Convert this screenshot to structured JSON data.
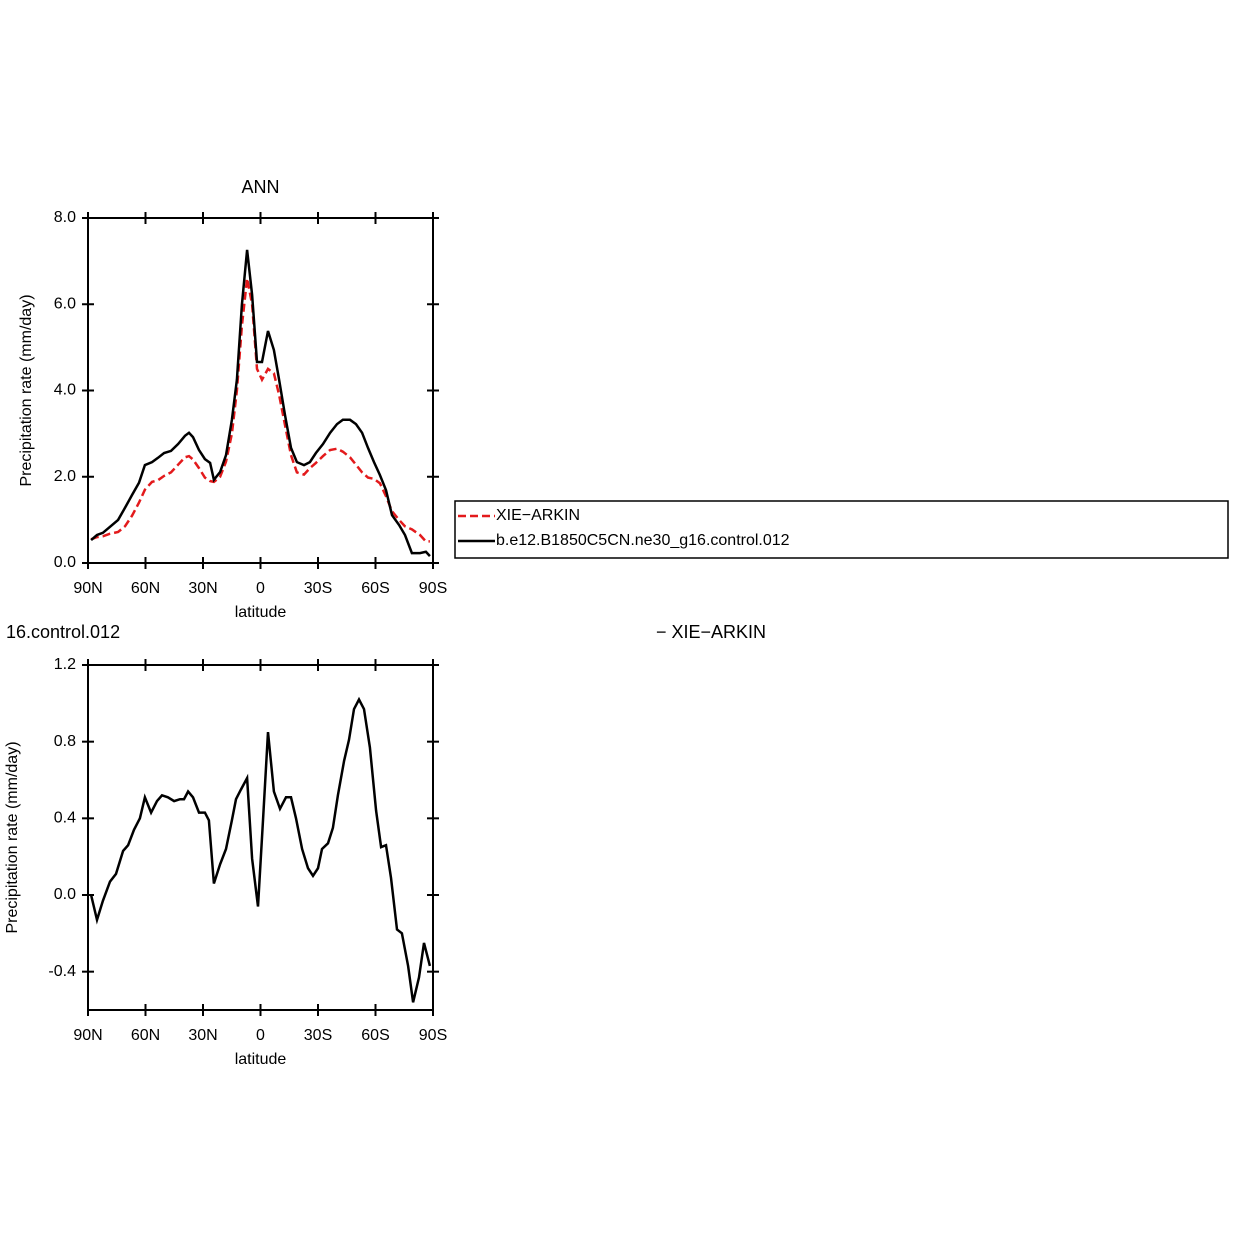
{
  "chart_data": [
    {
      "type": "line",
      "title": "ANN",
      "x_label": "latitude",
      "y_label": "Precipitation rate (mm/day)",
      "x": [
        88.4,
        85.3,
        82.2,
        78.5,
        74.3,
        70.7,
        67.0,
        63.4,
        60.3,
        56.6,
        53.5,
        50.3,
        46.7,
        43.0,
        39.4,
        37.3,
        35.2,
        32.1,
        29.0,
        26.3,
        24.3,
        21.1,
        18.0,
        14.9,
        12.3,
        9.7,
        7.0,
        4.4,
        1.8,
        -0.8,
        -3.9,
        -7.0,
        -9.7,
        -12.8,
        -15.9,
        -19.0,
        -22.7,
        -25.8,
        -28.9,
        -32.6,
        -36.3,
        -39.9,
        -43.0,
        -46.7,
        -49.8,
        -53.0,
        -56.1,
        -59.2,
        -62.3,
        -65.5,
        -68.6,
        -72.3,
        -75.4,
        -79.0,
        -83.2,
        -86.3,
        -88.4
      ],
      "series": [
        {
          "name": "XIE−ARKIN",
          "color": "#e31a1c",
          "dashed": true,
          "values": [
            0.55,
            0.6,
            0.62,
            0.68,
            0.72,
            0.85,
            1.1,
            1.4,
            1.7,
            1.88,
            1.92,
            2.02,
            2.1,
            2.28,
            2.45,
            2.48,
            2.4,
            2.2,
            1.98,
            1.9,
            1.88,
            2.0,
            2.35,
            3.0,
            4.0,
            5.5,
            6.6,
            6.0,
            4.5,
            4.25,
            4.5,
            4.4,
            3.9,
            3.2,
            2.5,
            2.1,
            2.05,
            2.2,
            2.32,
            2.48,
            2.62,
            2.65,
            2.58,
            2.45,
            2.28,
            2.1,
            1.98,
            1.95,
            1.85,
            1.55,
            1.2,
            1.0,
            0.85,
            0.78,
            0.65,
            0.5,
            0.5
          ]
        },
        {
          "name": "b.e12.B1850C5CN.ne30_g16.control.012",
          "color": "#000000",
          "dashed": false,
          "values": [
            0.53,
            0.65,
            0.7,
            0.84,
            1.0,
            1.28,
            1.58,
            1.86,
            2.27,
            2.34,
            2.44,
            2.55,
            2.6,
            2.76,
            2.95,
            3.02,
            2.92,
            2.62,
            2.41,
            2.32,
            1.93,
            2.11,
            2.5,
            3.32,
            4.25,
            5.99,
            7.26,
            6.22,
            4.66,
            4.66,
            5.38,
            4.94,
            4.25,
            3.43,
            2.67,
            2.34,
            2.27,
            2.34,
            2.55,
            2.76,
            3.02,
            3.22,
            3.32,
            3.32,
            3.22,
            3.02,
            2.67,
            2.34,
            2.04,
            1.69,
            1.11,
            0.88,
            0.65,
            0.23,
            0.23,
            0.26,
            0.16
          ]
        }
      ],
      "xlim": [
        90,
        -90
      ],
      "xticks": [
        {
          "value": 90,
          "label": "90N"
        },
        {
          "value": 60,
          "label": "60N"
        },
        {
          "value": 30,
          "label": "30N"
        },
        0,
        {
          "value": -30,
          "label": "30S"
        },
        {
          "value": -60,
          "label": "60S"
        },
        {
          "value": -90,
          "label": "90S"
        }
      ],
      "ylim": [
        0,
        8
      ],
      "yticks": [
        {
          "value": 0,
          "label": "0.0"
        },
        {
          "value": 2,
          "label": "2.0"
        },
        {
          "value": 4,
          "label": "4.0"
        },
        {
          "value": 6,
          "label": "6.0"
        },
        {
          "value": 8,
          "label": "8.0"
        }
      ],
      "legend": "outside-right"
    },
    {
      "type": "line",
      "title_left": "16.control.012",
      "title_right": "− XIE−ARKIN",
      "x_label": "latitude",
      "y_label": "Precipitation rate (mm/day)",
      "x": [
        88.4,
        85.3,
        82.2,
        78.5,
        75.4,
        71.7,
        69.1,
        66.0,
        62.9,
        60.3,
        57.1,
        54.0,
        51.4,
        48.3,
        45.1,
        42.0,
        39.9,
        37.8,
        35.2,
        32.1,
        29.0,
        26.9,
        24.3,
        21.1,
        18.0,
        14.9,
        12.8,
        10.2,
        7.0,
        4.4,
        1.3,
        -1.3,
        -3.9,
        -7.0,
        -10.2,
        -13.3,
        -15.9,
        -18.5,
        -21.7,
        -24.8,
        -27.4,
        -30.0,
        -32.1,
        -35.2,
        -37.8,
        -40.4,
        -43.6,
        -46.2,
        -48.8,
        -51.4,
        -54.0,
        -57.1,
        -60.3,
        -62.9,
        -65.5,
        -68.1,
        -71.2,
        -73.8,
        -77.0,
        -79.6,
        -82.7,
        -85.3,
        -88.4
      ],
      "color": "#000000",
      "values": [
        0.0,
        -0.13,
        -0.03,
        0.07,
        0.11,
        0.23,
        0.26,
        0.34,
        0.4,
        0.51,
        0.43,
        0.49,
        0.52,
        0.51,
        0.49,
        0.5,
        0.5,
        0.54,
        0.51,
        0.43,
        0.43,
        0.39,
        0.06,
        0.16,
        0.24,
        0.39,
        0.5,
        0.55,
        0.61,
        0.19,
        -0.06,
        0.39,
        0.85,
        0.54,
        0.45,
        0.51,
        0.51,
        0.4,
        0.24,
        0.14,
        0.1,
        0.14,
        0.24,
        0.27,
        0.35,
        0.52,
        0.7,
        0.81,
        0.97,
        1.02,
        0.97,
        0.77,
        0.44,
        0.25,
        0.26,
        0.09,
        -0.18,
        -0.2,
        -0.37,
        -0.56,
        -0.43,
        -0.25,
        -0.37
      ],
      "xlim": [
        90,
        -90
      ],
      "xticks": [
        {
          "value": 90,
          "label": "90N"
        },
        {
          "value": 60,
          "label": "60N"
        },
        {
          "value": 30,
          "label": "30N"
        },
        0,
        {
          "value": -30,
          "label": "30S"
        },
        {
          "value": -60,
          "label": "60S"
        },
        {
          "value": -90,
          "label": "90S"
        }
      ],
      "ylim": [
        -0.6,
        1.2
      ],
      "yticks": [
        {
          "value": -0.4,
          "label": "-0.4"
        },
        {
          "value": 0,
          "label": "0.0"
        },
        {
          "value": 0.4,
          "label": "0.4"
        },
        {
          "value": 0.8,
          "label": "0.8"
        },
        {
          "value": 1.2,
          "label": "1.2"
        }
      ]
    }
  ]
}
